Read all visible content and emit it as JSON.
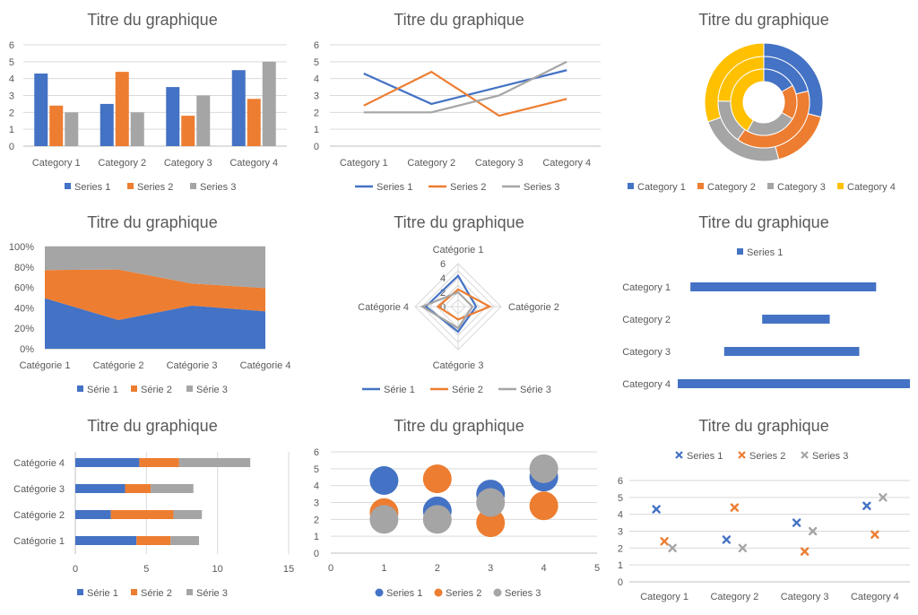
{
  "colors": {
    "blue": "#4472C4",
    "orange": "#ED7D31",
    "gray": "#A5A5A5",
    "yellow": "#FFC000",
    "grid": "#D9D9D9",
    "axis": "#BFBFBF",
    "text": "#595959"
  },
  "chart_data": [
    {
      "id": "c1",
      "type": "bar",
      "title": "Titre du graphique",
      "categories": [
        "Category 1",
        "Category 2",
        "Category 3",
        "Category 4"
      ],
      "series": [
        {
          "name": "Series 1",
          "values": [
            4.3,
            2.5,
            3.5,
            4.5
          ]
        },
        {
          "name": "Series 2",
          "values": [
            2.4,
            4.4,
            1.8,
            2.8
          ]
        },
        {
          "name": "Series 3",
          "values": [
            2,
            2,
            3,
            5
          ]
        }
      ],
      "ylim": [
        0,
        6
      ],
      "yticks": [
        "0",
        "1",
        "2",
        "3",
        "4",
        "5",
        "6"
      ],
      "grid": true,
      "legend": "bottom"
    },
    {
      "id": "c2",
      "type": "line",
      "title": "Titre du graphique",
      "categories": [
        "Category 1",
        "Category 2",
        "Category 3",
        "Category 4"
      ],
      "series": [
        {
          "name": "Series 1",
          "values": [
            4.3,
            2.5,
            3.5,
            4.5
          ]
        },
        {
          "name": "Series 2",
          "values": [
            2.4,
            4.4,
            1.8,
            2.8
          ]
        },
        {
          "name": "Series 3",
          "values": [
            2,
            2,
            3,
            5
          ]
        }
      ],
      "ylim": [
        0,
        6
      ],
      "yticks": [
        "0",
        "1",
        "2",
        "3",
        "4",
        "5",
        "6"
      ],
      "grid": true,
      "legend": "bottom"
    },
    {
      "id": "c3",
      "type": "pie",
      "subtype": "doughnut",
      "title": "Titre du graphique",
      "categories": [
        "Category 1",
        "Category 2",
        "Category 3",
        "Category 4"
      ],
      "series": [
        {
          "name": "Series 1",
          "values": [
            4.3,
            2.5,
            3.5,
            4.5
          ]
        },
        {
          "name": "Series 2",
          "values": [
            2.4,
            4.4,
            1.8,
            2.8
          ]
        },
        {
          "name": "Series 3",
          "values": [
            2,
            2,
            3,
            5
          ]
        }
      ],
      "legend": "bottom"
    },
    {
      "id": "c4",
      "type": "area",
      "stacked": "percent",
      "title": "Titre du graphique",
      "categories": [
        "Catégorie 1",
        "Catégorie 2",
        "Catégorie 3",
        "Catégorie 4"
      ],
      "series": [
        {
          "name": "Série 1",
          "values": [
            4.3,
            2.5,
            3.5,
            4.5
          ]
        },
        {
          "name": "Série 2",
          "values": [
            2.4,
            4.4,
            1.8,
            2.8
          ]
        },
        {
          "name": "Série 3",
          "values": [
            2,
            2,
            3,
            5
          ]
        }
      ],
      "ylim": [
        0,
        100
      ],
      "yticks": [
        "0%",
        "20%",
        "40%",
        "60%",
        "80%",
        "100%"
      ],
      "grid": true,
      "legend": "bottom"
    },
    {
      "id": "c5",
      "type": "radar",
      "title": "Titre du graphique",
      "categories": [
        "Catégorie 1",
        "Catégorie 2",
        "Catégorie 3",
        "Catégorie 4"
      ],
      "series": [
        {
          "name": "Série 1",
          "values": [
            4.3,
            2.5,
            3.5,
            4.5
          ]
        },
        {
          "name": "Série 2",
          "values": [
            2.4,
            4.4,
            1.8,
            2.8
          ]
        },
        {
          "name": "Série 3",
          "values": [
            2,
            2,
            3,
            5
          ]
        }
      ],
      "rlim": [
        0,
        6
      ],
      "rticks": [
        "0",
        "2",
        "4",
        "6"
      ],
      "legend": "bottom"
    },
    {
      "id": "c6",
      "type": "bar",
      "orientation": "horizontal",
      "subtype": "floating",
      "title": "Titre du graphique",
      "categories": [
        "Category 1",
        "Category 2",
        "Category 3",
        "Category 4"
      ],
      "series": [
        {
          "name": "Series 1",
          "ranges": [
            [
              0.6,
              9.4
            ],
            [
              4,
              7.2
            ],
            [
              2.2,
              8.6
            ],
            [
              0,
              11
            ]
          ]
        }
      ],
      "xlim": [
        0,
        11
      ],
      "legend": "top"
    },
    {
      "id": "c7",
      "type": "bar",
      "orientation": "horizontal",
      "stacked": true,
      "title": "Titre du graphique",
      "categories": [
        "Catégorie 1",
        "Catégorie 2",
        "Catégorie 3",
        "Catégorie 4"
      ],
      "series": [
        {
          "name": "Série 1",
          "values": [
            4.3,
            2.5,
            3.5,
            4.5
          ]
        },
        {
          "name": "Série 2",
          "values": [
            2.4,
            4.4,
            1.8,
            2.8
          ]
        },
        {
          "name": "Série 3",
          "values": [
            2,
            2,
            3,
            5
          ]
        }
      ],
      "xlim": [
        0,
        15
      ],
      "xticks": [
        "0",
        "5",
        "10",
        "15"
      ],
      "grid": true,
      "legend": "bottom"
    },
    {
      "id": "c8",
      "type": "scatter",
      "subtype": "bubble",
      "title": "Titre du graphique",
      "x": [
        1,
        2,
        3,
        4
      ],
      "series": [
        {
          "name": "Series 1",
          "values": [
            4.3,
            2.5,
            3.5,
            4.5
          ]
        },
        {
          "name": "Series 2",
          "values": [
            2.4,
            4.4,
            1.8,
            2.8
          ]
        },
        {
          "name": "Series 3",
          "values": [
            2,
            2,
            3,
            5
          ]
        }
      ],
      "xlim": [
        0,
        5
      ],
      "ylim": [
        0,
        6
      ],
      "xticks": [
        "0",
        "1",
        "2",
        "3",
        "4",
        "5"
      ],
      "yticks": [
        "0",
        "1",
        "2",
        "3",
        "4",
        "5",
        "6"
      ],
      "grid": true,
      "legend": "bottom"
    },
    {
      "id": "c9",
      "type": "scatter",
      "subtype": "marker-x",
      "title": "Titre du graphique",
      "categories": [
        "Category 1",
        "Category 2",
        "Category 3",
        "Category 4"
      ],
      "series": [
        {
          "name": "Series 1",
          "values": [
            4.3,
            2.5,
            3.5,
            4.5
          ]
        },
        {
          "name": "Series 2",
          "values": [
            2.4,
            4.4,
            1.8,
            2.8
          ]
        },
        {
          "name": "Series 3",
          "values": [
            2,
            2,
            3,
            5
          ]
        }
      ],
      "ylim": [
        0,
        6
      ],
      "yticks": [
        "0",
        "1",
        "2",
        "3",
        "4",
        "5",
        "6"
      ],
      "grid": true,
      "legend": "top"
    }
  ]
}
